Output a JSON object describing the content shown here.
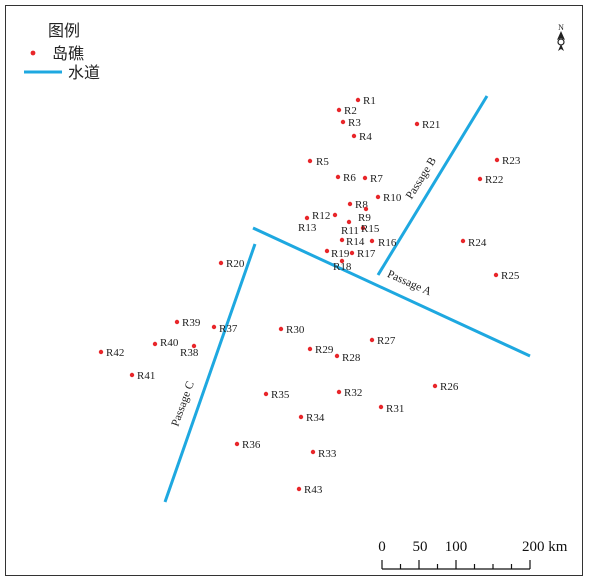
{
  "legend": {
    "title": "图例",
    "reef_label": "岛礁",
    "channel_label": "水道",
    "reef_color": "#e8262a",
    "channel_color": "#1ea8e0"
  },
  "north_arrow": {
    "letter": "N",
    "icon": "north-arrow-icon"
  },
  "scale_bar": {
    "ticks": [
      "0",
      "50",
      "100",
      "200 km"
    ]
  },
  "passages": [
    {
      "name": "Passage A"
    },
    {
      "name": "Passage B"
    },
    {
      "name": "Passage C"
    }
  ],
  "reefs": [
    {
      "id": "R1"
    },
    {
      "id": "R2"
    },
    {
      "id": "R3"
    },
    {
      "id": "R4"
    },
    {
      "id": "R5"
    },
    {
      "id": "R6"
    },
    {
      "id": "R7"
    },
    {
      "id": "R8"
    },
    {
      "id": "R9"
    },
    {
      "id": "R10"
    },
    {
      "id": "R11"
    },
    {
      "id": "R12"
    },
    {
      "id": "R13"
    },
    {
      "id": "R14"
    },
    {
      "id": "R15"
    },
    {
      "id": "R16"
    },
    {
      "id": "R17"
    },
    {
      "id": "R18"
    },
    {
      "id": "R19"
    },
    {
      "id": "R20"
    },
    {
      "id": "R21"
    },
    {
      "id": "R22"
    },
    {
      "id": "R23"
    },
    {
      "id": "R24"
    },
    {
      "id": "R25"
    },
    {
      "id": "R26"
    },
    {
      "id": "R27"
    },
    {
      "id": "R28"
    },
    {
      "id": "R29"
    },
    {
      "id": "R30"
    },
    {
      "id": "R31"
    },
    {
      "id": "R32"
    },
    {
      "id": "R33"
    },
    {
      "id": "R34"
    },
    {
      "id": "R35"
    },
    {
      "id": "R36"
    },
    {
      "id": "R37"
    },
    {
      "id": "R38"
    },
    {
      "id": "R39"
    },
    {
      "id": "R40"
    },
    {
      "id": "R41"
    },
    {
      "id": "R42"
    },
    {
      "id": "R43"
    }
  ]
}
